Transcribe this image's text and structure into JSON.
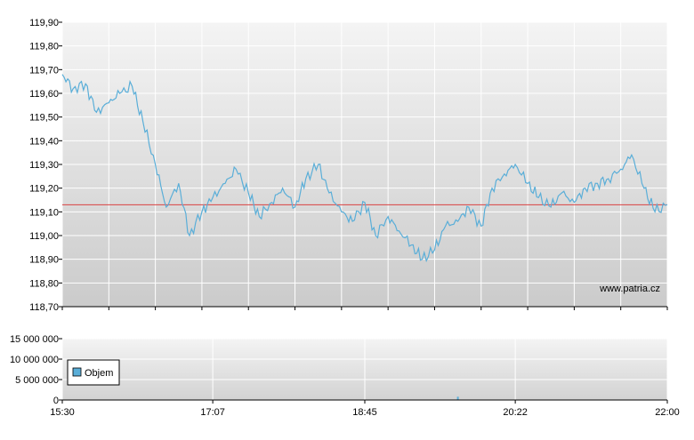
{
  "watermark": "www.patria.cz",
  "legend": {
    "label": "Objem"
  },
  "colors": {
    "price_line": "#5aaed8",
    "reference_line": "#d94040",
    "volume_bar": "#5aaed8",
    "legend_swatch": "#5aaed8"
  },
  "chart_data": [
    {
      "type": "line",
      "title": "",
      "xlabel": "",
      "ylabel": "",
      "ylim": [
        118.7,
        119.9
      ],
      "grid": true,
      "y_ticks": [
        "119,90",
        "119,80",
        "119,70",
        "119,60",
        "119,50",
        "119,40",
        "119,30",
        "119,20",
        "119,10",
        "119,00",
        "118,90",
        "118,80",
        "118,70"
      ],
      "reference_line": 119.13,
      "series": [
        {
          "x": [
            "15:30",
            "15:37",
            "15:45",
            "15:52",
            "16:00",
            "16:07",
            "16:15",
            "16:22",
            "16:30",
            "16:37",
            "16:45",
            "16:52",
            "17:00",
            "17:07",
            "17:15",
            "17:22",
            "17:30",
            "17:37",
            "17:45",
            "17:52",
            "18:00",
            "18:07",
            "18:15",
            "18:22",
            "18:30",
            "18:37",
            "18:45",
            "18:52",
            "19:00",
            "19:07",
            "19:15",
            "19:22",
            "19:30",
            "19:37",
            "19:45",
            "19:52",
            "20:00",
            "20:07",
            "20:15",
            "20:22",
            "20:30",
            "20:37",
            "20:45",
            "20:52",
            "21:00",
            "21:07",
            "21:15",
            "21:22",
            "21:30",
            "21:37",
            "21:45",
            "21:52",
            "22:00"
          ],
          "values": [
            119.68,
            119.62,
            119.64,
            119.52,
            119.56,
            119.6,
            119.63,
            119.48,
            119.3,
            119.12,
            119.22,
            119.0,
            119.1,
            119.16,
            119.22,
            119.28,
            119.18,
            119.08,
            119.14,
            119.2,
            119.12,
            119.24,
            119.3,
            119.18,
            119.1,
            119.06,
            119.14,
            119.0,
            119.08,
            119.02,
            118.96,
            118.9,
            118.94,
            119.04,
            119.06,
            119.12,
            119.04,
            119.2,
            119.26,
            119.3,
            119.22,
            119.16,
            119.12,
            119.18,
            119.14,
            119.2,
            119.22,
            119.24,
            119.28,
            119.34,
            119.2,
            119.1,
            119.13
          ]
        }
      ]
    },
    {
      "type": "bar",
      "title": "",
      "ylim": [
        0,
        15000000
      ],
      "grid": true,
      "y_ticks": [
        "15 000 000",
        "10 000 000",
        "5 000 000",
        "0"
      ],
      "x_ticks": [
        "15:30",
        "17:07",
        "18:45",
        "20:22",
        "22:00"
      ],
      "series": [
        {
          "name": "Objem",
          "x": [
            "19:45"
          ],
          "values": [
            800000
          ]
        }
      ]
    }
  ]
}
